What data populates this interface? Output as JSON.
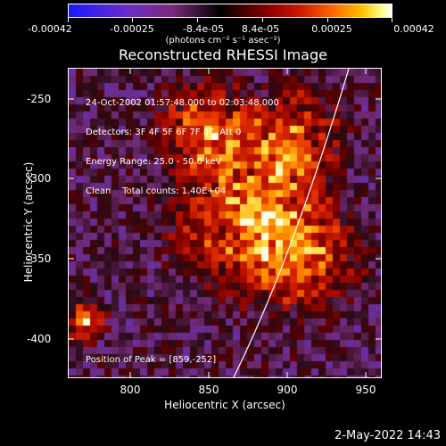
{
  "colorbar": {
    "ticks": [
      "-0.00042",
      "-0.00025",
      "-8.4e-05",
      "8.4e-05",
      "0.00025",
      "0.00042"
    ],
    "units": "(photons cm⁻² s⁻¹ asec⁻²)"
  },
  "title": "Reconstructed RHESSI Image",
  "annotation": {
    "time_range": "24-Oct-2002 01:57:48.000 to 02:03:48.000",
    "detectors": "Detectors: 3F 4F 5F 6F 7F 8F, Att 0",
    "energy": "Energy Range: 25.0 - 50.0 keV",
    "clean": "Clean    Total counts: 1.40E+04",
    "peak": "Position of Peak = [859,-252]"
  },
  "axes": {
    "xlabel": "Heliocentric X (arcsec)",
    "ylabel": "Heliocentric Y (arcsec)",
    "xticks": [
      "800",
      "850",
      "900",
      "950"
    ],
    "yticks": [
      "-250",
      "-300",
      "-350",
      "-400"
    ]
  },
  "timestamp": "2-May-2022 14:43"
}
